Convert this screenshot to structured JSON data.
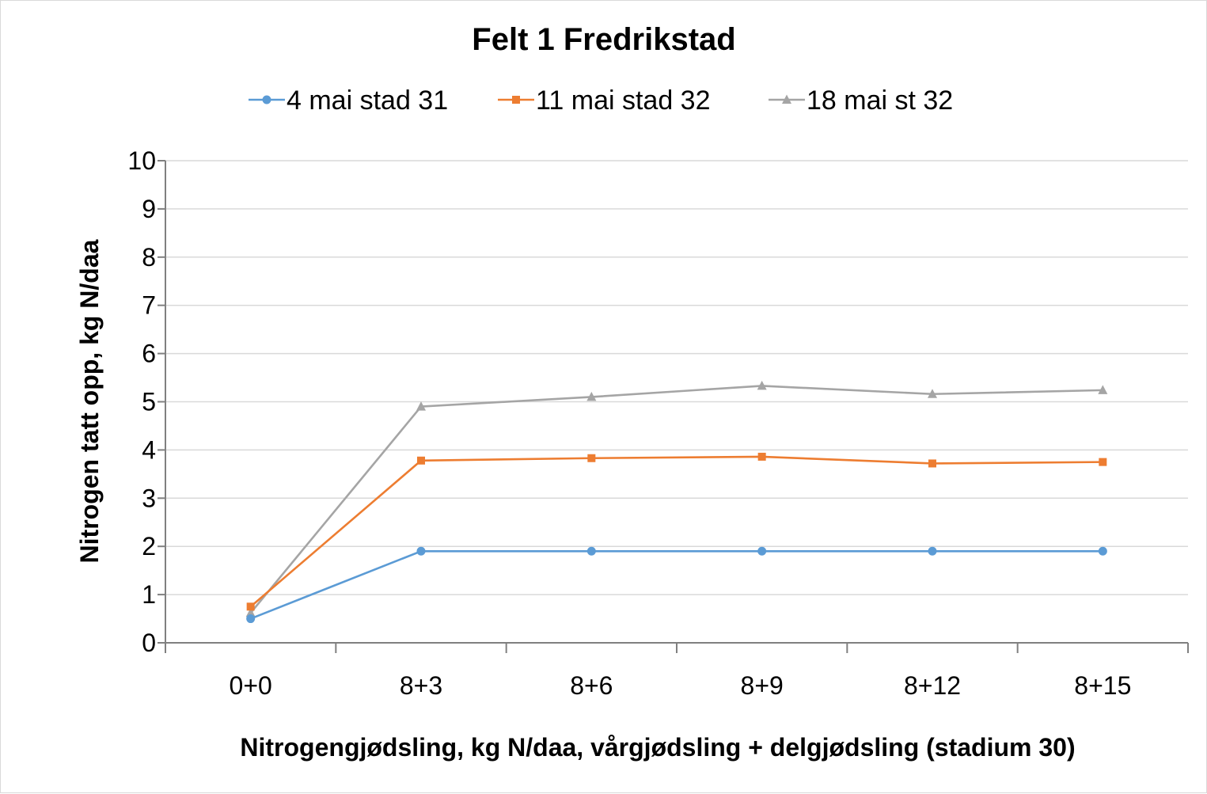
{
  "chart_data": {
    "type": "line",
    "title": "Felt 1 Fredrikstad",
    "xlabel": "Nitrogengjødsling, kg N/daa, vårgjødsling + delgjødsling (stadium 30)",
    "ylabel": "Nitrogen tatt opp, kg N/daa",
    "categories": [
      "0+0",
      "8+3",
      "8+6",
      "8+9",
      "8+12",
      "8+15"
    ],
    "ylim": [
      0,
      10
    ],
    "yticks": [
      "0",
      "1",
      "2",
      "3",
      "4",
      "5",
      "6",
      "7",
      "8",
      "9",
      "10"
    ],
    "grid": "horizontal",
    "legend": "top",
    "series": [
      {
        "name": "4 mai stad 31",
        "color": "#5B9BD5",
        "marker": "circle",
        "values": [
          0.5,
          1.9,
          1.9,
          1.9,
          1.9,
          1.9
        ]
      },
      {
        "name": "11 mai stad 32",
        "color": "#ED7D31",
        "marker": "square",
        "values": [
          0.75,
          3.78,
          3.83,
          3.86,
          3.72,
          3.75
        ]
      },
      {
        "name": "18 mai st 32",
        "color": "#A5A5A5",
        "marker": "triangle",
        "values": [
          0.62,
          4.9,
          5.1,
          5.33,
          5.16,
          5.24
        ]
      }
    ]
  }
}
